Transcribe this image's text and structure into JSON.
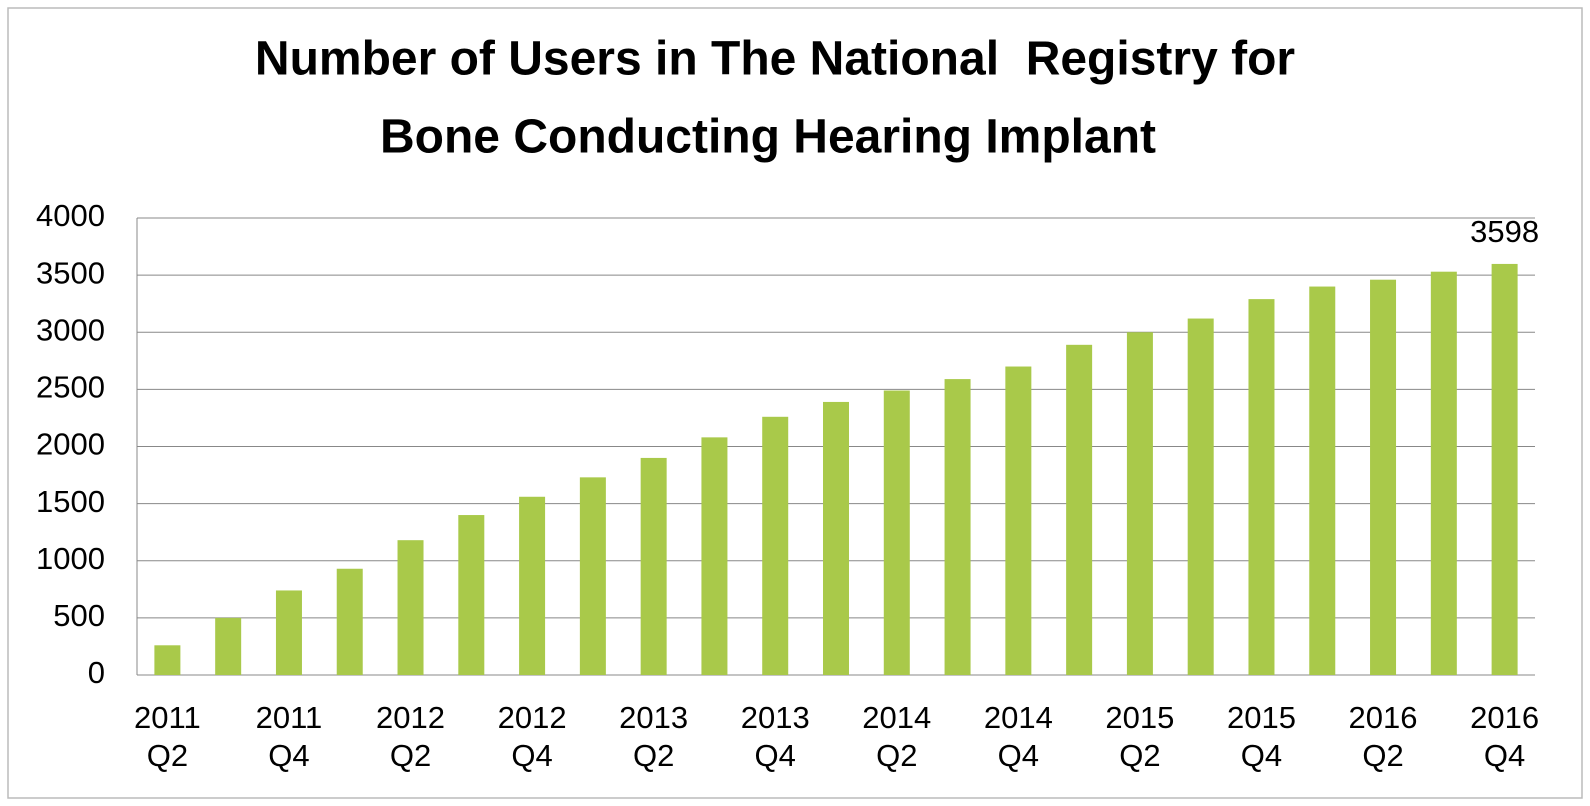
{
  "chart_data": {
    "type": "bar",
    "title": [
      "Number of Users in The National  Registry for",
      "Bone Conducting Hearing Implant"
    ],
    "categories": [
      "2011 Q2",
      null,
      "2011 Q4",
      null,
      "2012 Q2",
      null,
      "2012 Q4",
      null,
      "2013 Q2",
      null,
      "2013 Q4",
      null,
      "2014 Q2",
      null,
      "2014 Q4",
      null,
      "2015 Q2",
      null,
      "2015 Q4",
      null,
      "2016 Q2",
      null,
      "2016 Q4"
    ],
    "values": [
      260,
      500,
      740,
      930,
      1180,
      1400,
      1560,
      1730,
      1900,
      2080,
      2260,
      2390,
      2490,
      2590,
      2700,
      2890,
      3000,
      3120,
      3290,
      3400,
      3460,
      3530,
      3598
    ],
    "value_labels": [
      null,
      null,
      null,
      null,
      null,
      null,
      null,
      null,
      null,
      null,
      null,
      null,
      null,
      null,
      null,
      null,
      null,
      null,
      null,
      null,
      null,
      null,
      "3598"
    ],
    "color": "#a9c94a",
    "ylim": [
      0,
      4000
    ],
    "yticks": [
      0,
      500,
      1000,
      1500,
      2000,
      2500,
      3000,
      3500,
      4000
    ],
    "grid": true
  }
}
